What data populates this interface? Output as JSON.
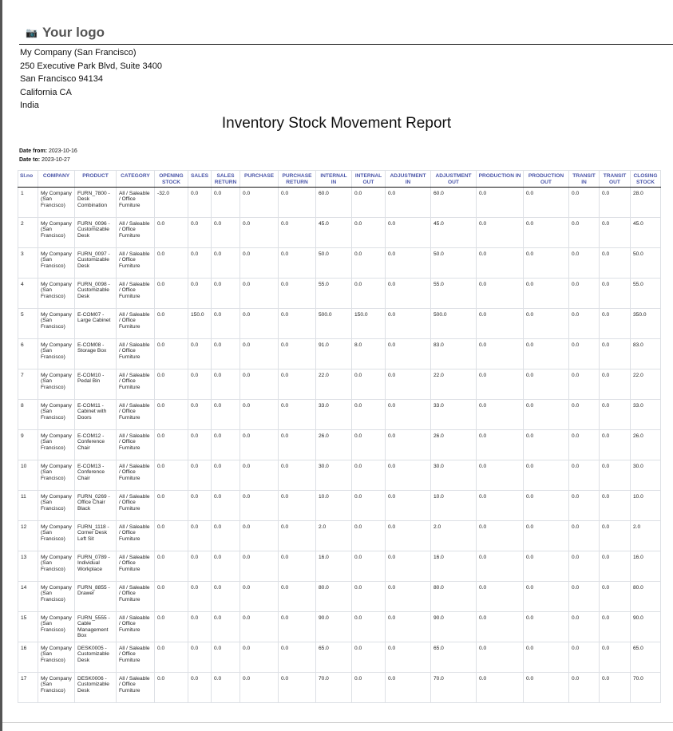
{
  "logo": {
    "icon": "camera-icon",
    "text": "Your logo"
  },
  "company": {
    "lines": [
      "My Company (San Francisco)",
      "250 Executive Park Blvd, Suite 3400",
      "San Francisco 94134",
      "California CA",
      "India"
    ]
  },
  "report": {
    "title": "Inventory Stock Movement Report",
    "date_from_label": "Date from:",
    "date_from": "2023-10-16",
    "date_to_label": "Date to:",
    "date_to": "2023-10-27"
  },
  "columns": [
    "Sl.no",
    "COMPANY",
    "PRODUCT",
    "CATEGORY",
    "OPENING STOCK",
    "SALES",
    "SALES RETURN",
    "PURCHASE",
    "PURCHASE RETURN",
    "INTERNAL IN",
    "INTERNAL OUT",
    "ADJUSTMENT IN",
    "ADJUSTMENT OUT",
    "PRODUCTION IN",
    "PRODUCTION OUT",
    "TRANSIT IN",
    "TRANSIT OUT",
    "CLOSING STOCK"
  ],
  "header_color": "#4a55a8",
  "rows": [
    [
      "1",
      "My Company (San Francisco)",
      "FURN_7800 - Desk Combination",
      "All / Saleable / Office Furniture",
      "-32.0",
      "0.0",
      "0.0",
      "0.0",
      "0.0",
      "60.0",
      "0.0",
      "0.0",
      "60.0",
      "0.0",
      "0.0",
      "0.0",
      "0.0",
      "28.0"
    ],
    [
      "2",
      "My Company (San Francisco)",
      "FURN_0096 - Customizable Desk",
      "All / Saleable / Office Furniture",
      "0.0",
      "0.0",
      "0.0",
      "0.0",
      "0.0",
      "45.0",
      "0.0",
      "0.0",
      "45.0",
      "0.0",
      "0.0",
      "0.0",
      "0.0",
      "45.0"
    ],
    [
      "3",
      "My Company (San Francisco)",
      "FURN_0097 - Customizable Desk",
      "All / Saleable / Office Furniture",
      "0.0",
      "0.0",
      "0.0",
      "0.0",
      "0.0",
      "50.0",
      "0.0",
      "0.0",
      "50.0",
      "0.0",
      "0.0",
      "0.0",
      "0.0",
      "50.0"
    ],
    [
      "4",
      "My Company (San Francisco)",
      "FURN_0098 - Customizable Desk",
      "All / Saleable / Office Furniture",
      "0.0",
      "0.0",
      "0.0",
      "0.0",
      "0.0",
      "55.0",
      "0.0",
      "0.0",
      "55.0",
      "0.0",
      "0.0",
      "0.0",
      "0.0",
      "55.0"
    ],
    [
      "5",
      "My Company (San Francisco)",
      "E-COM07 - Large Cabinet",
      "All / Saleable / Office Furniture",
      "0.0",
      "150.0",
      "0.0",
      "0.0",
      "0.0",
      "500.0",
      "150.0",
      "0.0",
      "500.0",
      "0.0",
      "0.0",
      "0.0",
      "0.0",
      "350.0"
    ],
    [
      "6",
      "My Company (San Francisco)",
      "E-COM08 - Storage Box",
      "All / Saleable / Office Furniture",
      "0.0",
      "0.0",
      "0.0",
      "0.0",
      "0.0",
      "91.0",
      "8.0",
      "0.0",
      "83.0",
      "0.0",
      "0.0",
      "0.0",
      "0.0",
      "83.0"
    ],
    [
      "7",
      "My Company (San Francisco)",
      "E-COM10 - Pedal Bin",
      "All / Saleable / Office Furniture",
      "0.0",
      "0.0",
      "0.0",
      "0.0",
      "0.0",
      "22.0",
      "0.0",
      "0.0",
      "22.0",
      "0.0",
      "0.0",
      "0.0",
      "0.0",
      "22.0"
    ],
    [
      "8",
      "My Company (San Francisco)",
      "E-COM11 - Cabinet with Doors",
      "All / Saleable / Office Furniture",
      "0.0",
      "0.0",
      "0.0",
      "0.0",
      "0.0",
      "33.0",
      "0.0",
      "0.0",
      "33.0",
      "0.0",
      "0.0",
      "0.0",
      "0.0",
      "33.0"
    ],
    [
      "9",
      "My Company (San Francisco)",
      "E-COM12 - Conference Chair",
      "All / Saleable / Office Furniture",
      "0.0",
      "0.0",
      "0.0",
      "0.0",
      "0.0",
      "26.0",
      "0.0",
      "0.0",
      "26.0",
      "0.0",
      "0.0",
      "0.0",
      "0.0",
      "26.0"
    ],
    [
      "10",
      "My Company (San Francisco)",
      "E-COM13 - Conference Chair",
      "All / Saleable / Office Furniture",
      "0.0",
      "0.0",
      "0.0",
      "0.0",
      "0.0",
      "30.0",
      "0.0",
      "0.0",
      "30.0",
      "0.0",
      "0.0",
      "0.0",
      "0.0",
      "30.0"
    ],
    [
      "11",
      "My Company (San Francisco)",
      "FURN_0269 - Office Chair Black",
      "All / Saleable / Office Furniture",
      "0.0",
      "0.0",
      "0.0",
      "0.0",
      "0.0",
      "10.0",
      "0.0",
      "0.0",
      "10.0",
      "0.0",
      "0.0",
      "0.0",
      "0.0",
      "10.0"
    ],
    [
      "12",
      "My Company (San Francisco)",
      "FURN_1118 - Corner Desk Left Sit",
      "All / Saleable / Office Furniture",
      "0.0",
      "0.0",
      "0.0",
      "0.0",
      "0.0",
      "2.0",
      "0.0",
      "0.0",
      "2.0",
      "0.0",
      "0.0",
      "0.0",
      "0.0",
      "2.0"
    ],
    [
      "13",
      "My Company (San Francisco)",
      "FURN_0789 - Individual Workplace",
      "All / Saleable / Office Furniture",
      "0.0",
      "0.0",
      "0.0",
      "0.0",
      "0.0",
      "16.0",
      "0.0",
      "0.0",
      "16.0",
      "0.0",
      "0.0",
      "0.0",
      "0.0",
      "16.0"
    ],
    [
      "14",
      "My Company (San Francisco)",
      "FURN_8855 - Drawer",
      "All / Saleable / Office Furniture",
      "0.0",
      "0.0",
      "0.0",
      "0.0",
      "0.0",
      "80.0",
      "0.0",
      "0.0",
      "80.0",
      "0.0",
      "0.0",
      "0.0",
      "0.0",
      "80.0"
    ],
    [
      "15",
      "My Company (San Francisco)",
      "FURN_5555 - Cable Management Box",
      "All / Saleable / Office Furniture",
      "0.0",
      "0.0",
      "0.0",
      "0.0",
      "0.0",
      "90.0",
      "0.0",
      "0.0",
      "90.0",
      "0.0",
      "0.0",
      "0.0",
      "0.0",
      "90.0"
    ],
    [
      "16",
      "My Company (San Francisco)",
      "DESK0005 - Customizable Desk",
      "All / Saleable / Office Furniture",
      "0.0",
      "0.0",
      "0.0",
      "0.0",
      "0.0",
      "65.0",
      "0.0",
      "0.0",
      "65.0",
      "0.0",
      "0.0",
      "0.0",
      "0.0",
      "65.0"
    ],
    [
      "17",
      "My Company (San Francisco)",
      "DESK0006 - Customizable Desk",
      "All / Saleable / Office Furniture",
      "0.0",
      "0.0",
      "0.0",
      "0.0",
      "0.0",
      "70.0",
      "0.0",
      "0.0",
      "70.0",
      "0.0",
      "0.0",
      "0.0",
      "0.0",
      "70.0"
    ]
  ]
}
